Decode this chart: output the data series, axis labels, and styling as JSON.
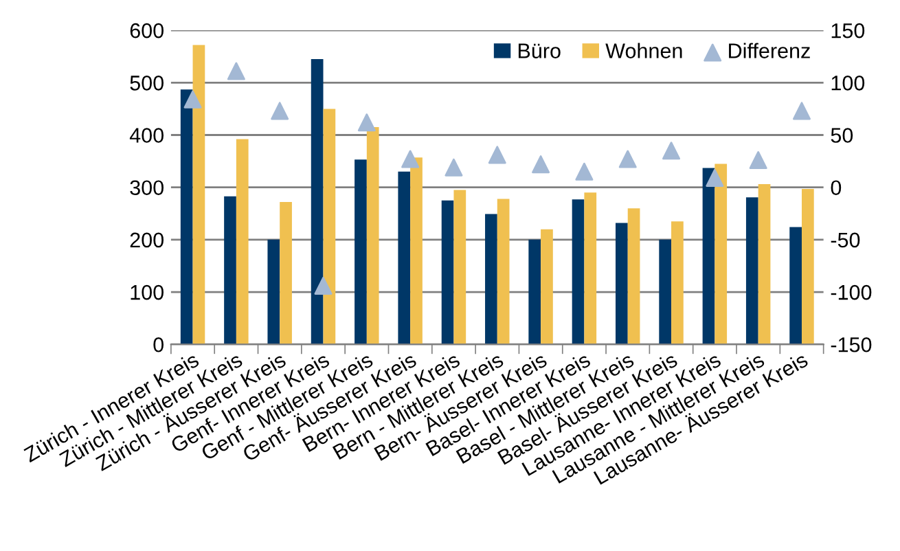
{
  "chart_data": {
    "type": "bar",
    "categories": [
      "Zürich - Innerer Kreis",
      "Zürich - Mittlerer Kreis",
      "Zürich - Äusserer Kreis",
      "Genf- Innerer Kreis",
      "Genf - Mittlerer Kreis",
      "Genf- Äusserer Kreis",
      "Bern- Innerer Kreis",
      "Bern - Mittlerer Kreis",
      "Bern- Äusserer Kreis",
      "Basel- Innerer Kreis",
      "Basel - Mittlerer Kreis",
      "Basel- Äusserer Kreis",
      "Lausanne- Innerer Kreis",
      "Lausanne - Mittlerer Kreis",
      "Lausanne- Äusserer Kreis"
    ],
    "series": [
      {
        "name": "Büro",
        "color": "#003767",
        "values": [
          487,
          283,
          200,
          545,
          353,
          330,
          275,
          249,
          200,
          277,
          232,
          200,
          337,
          281,
          224
        ]
      },
      {
        "name": "Wohnen",
        "color": "#f0c050",
        "values": [
          572,
          392,
          272,
          450,
          415,
          357,
          295,
          278,
          220,
          290,
          260,
          235,
          345,
          306,
          297
        ]
      },
      {
        "name": "Differenz",
        "type": "scatter",
        "axis": "y2",
        "marker": "triangle",
        "color": "#a3b8d4",
        "values": [
          84,
          111,
          73,
          -94,
          62,
          27,
          19,
          31,
          22,
          15,
          27,
          35,
          9,
          26,
          73
        ]
      }
    ],
    "ylim": [
      0,
      600
    ],
    "yticks": [
      0,
      100,
      200,
      300,
      400,
      500,
      600
    ],
    "y2lim": [
      -150,
      150
    ],
    "y2ticks": [
      -150,
      -100,
      -50,
      0,
      50,
      100,
      150
    ],
    "grid": "y",
    "legend": "top right"
  }
}
